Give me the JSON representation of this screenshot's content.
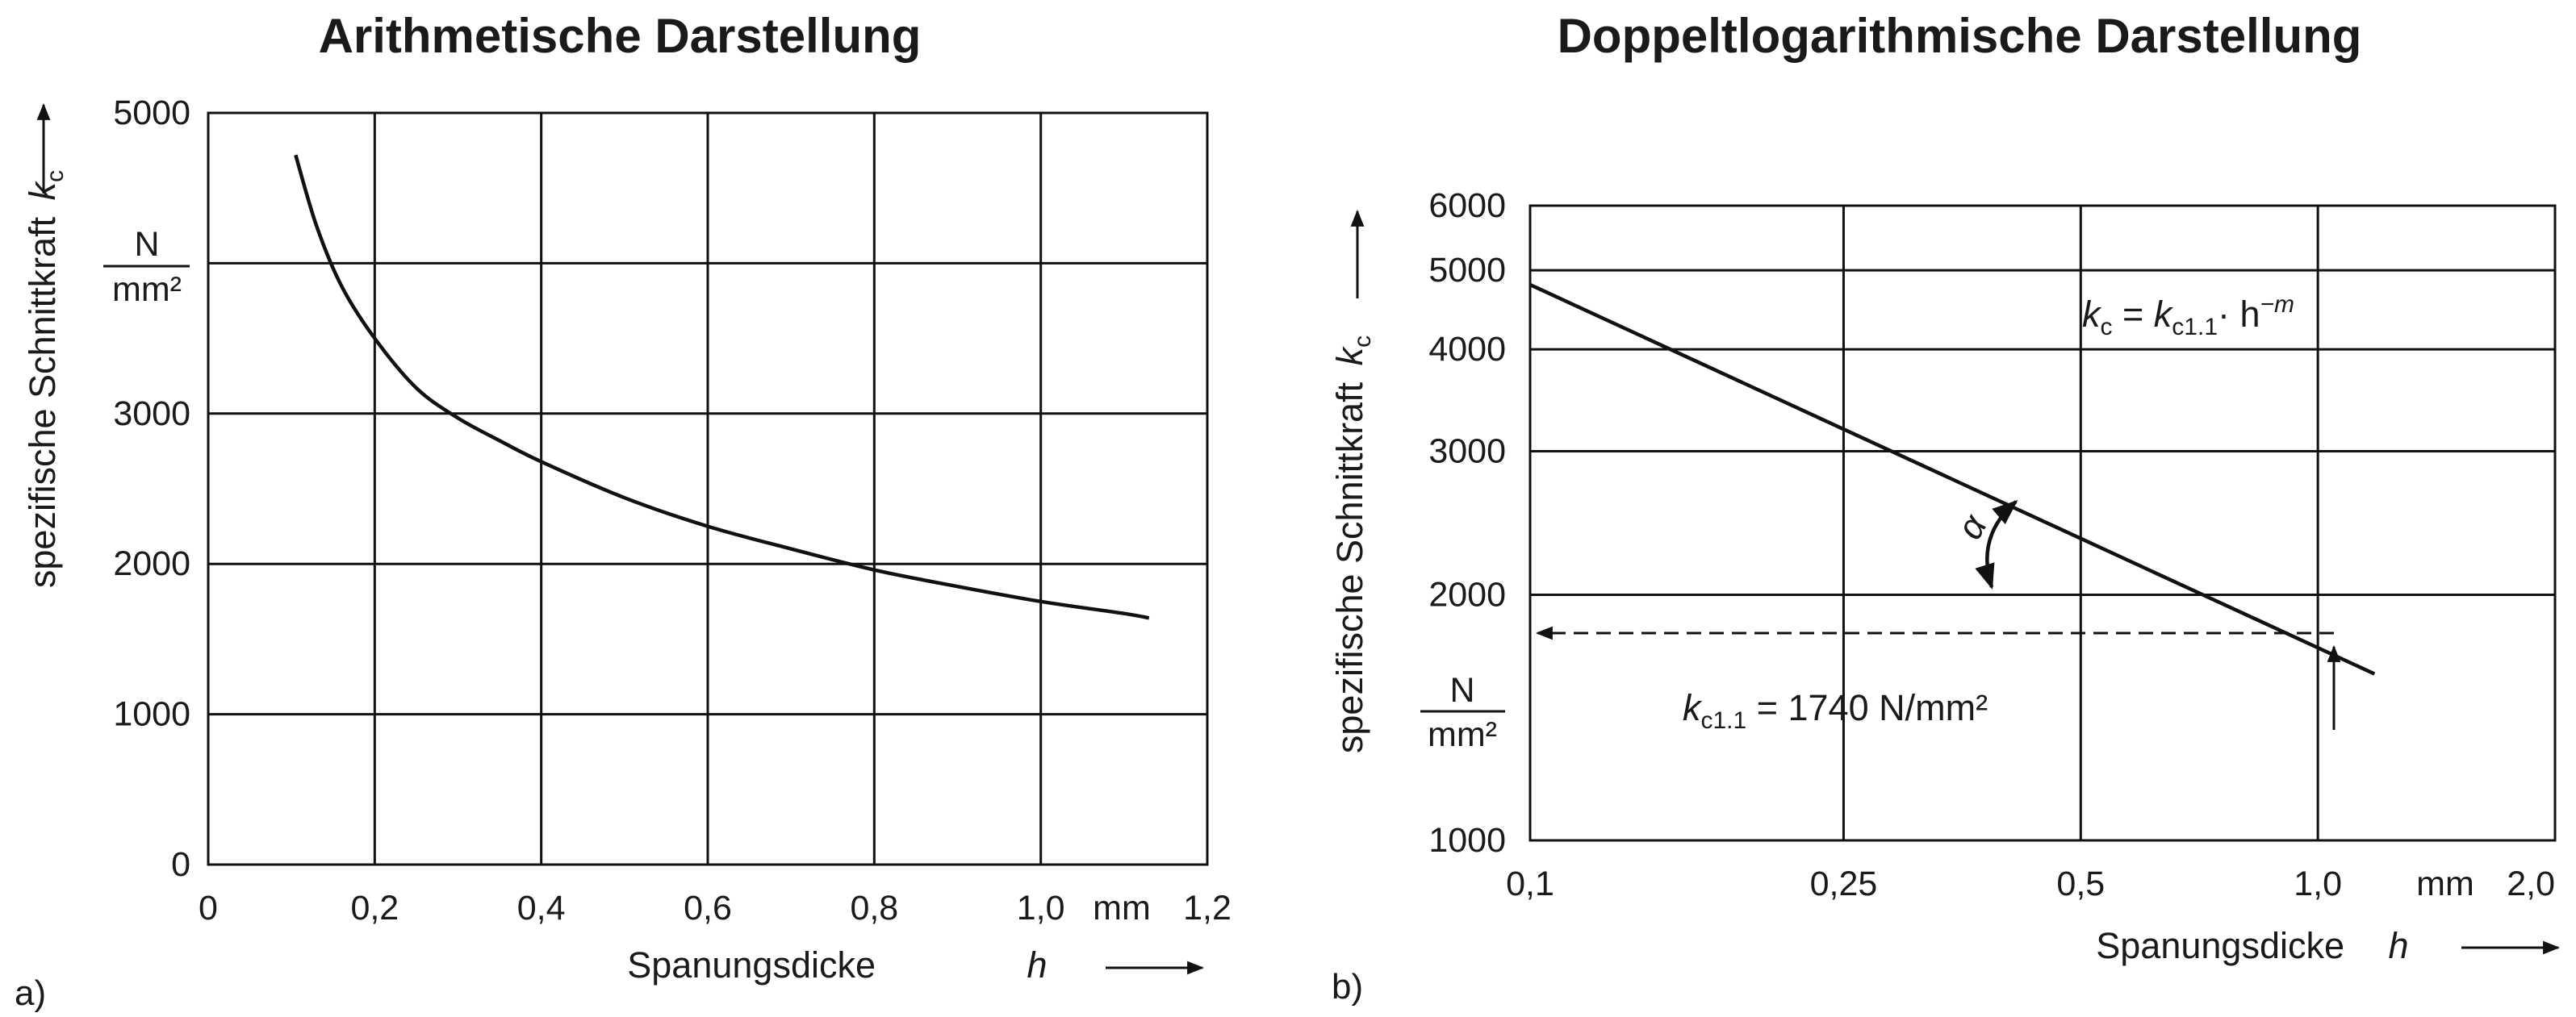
{
  "chart_data": [
    {
      "id": "a",
      "panel_label": "a)",
      "type": "line",
      "title": "Arithmetische Darstellung",
      "xlabel": "Spanungsdicke",
      "xlabel_var": "h",
      "x_unit": "mm",
      "ylabel": "spezifische Schnittkraft",
      "ylabel_var": "k",
      "ylabel_sub": "c",
      "y_unit_num": "N",
      "y_unit_den": "mm²",
      "xlim": [
        0,
        1.2
      ],
      "ylim": [
        0,
        5000
      ],
      "x_scale": "linear",
      "y_scale": "linear",
      "grid": true,
      "x_ticks": [
        {
          "value": 0,
          "label": "0"
        },
        {
          "value": 0.2,
          "label": "0,2"
        },
        {
          "value": 0.4,
          "label": "0,4"
        },
        {
          "value": 0.6,
          "label": "0,6"
        },
        {
          "value": 0.8,
          "label": "0,8"
        },
        {
          "value": 1.0,
          "label": "1,0"
        },
        {
          "value": 1.2,
          "label": "1,2"
        }
      ],
      "y_ticks": [
        {
          "value": 0,
          "label": "0"
        },
        {
          "value": 1000,
          "label": "1000"
        },
        {
          "value": 2000,
          "label": "2000"
        },
        {
          "value": 3000,
          "label": "3000"
        },
        {
          "value": 5000,
          "label": "5000"
        }
      ],
      "y_gridlines": [
        1000,
        2000,
        3000,
        4000
      ],
      "series": [
        {
          "x": [
            0.105,
            0.13,
            0.16,
            0.2,
            0.25,
            0.3,
            0.35,
            0.4,
            0.5,
            0.6,
            0.7,
            0.8,
            0.9,
            1.0,
            1.1,
            1.13
          ],
          "y": [
            4720,
            4250,
            3850,
            3500,
            3170,
            2970,
            2820,
            2680,
            2440,
            2250,
            2100,
            1960,
            1850,
            1750,
            1670,
            1640
          ]
        }
      ]
    },
    {
      "id": "b",
      "panel_label": "b)",
      "type": "line",
      "title": "Doppeltlogarithmische Darstellung",
      "xlabel": "Spanungsdicke",
      "xlabel_var": "h",
      "x_unit": "mm",
      "ylabel": "spezifische Schnittkraft",
      "ylabel_var": "k",
      "ylabel_sub": "c",
      "y_unit_num": "N",
      "y_unit_den": "mm²",
      "xlim": [
        0.1,
        2.0
      ],
      "ylim": [
        1000,
        6000
      ],
      "x_scale": "log",
      "y_scale": "log",
      "grid": true,
      "x_ticks": [
        {
          "value": 0.1,
          "label": "0,1"
        },
        {
          "value": 0.25,
          "label": "0,25"
        },
        {
          "value": 0.5,
          "label": "0,5"
        },
        {
          "value": 1.0,
          "label": "1,0"
        },
        {
          "value": 2.0,
          "label": "2,0"
        }
      ],
      "y_ticks": [
        {
          "value": 1000,
          "label": "1000"
        },
        {
          "value": 2000,
          "label": "2000"
        },
        {
          "value": 3000,
          "label": "3000"
        },
        {
          "value": 4000,
          "label": "4000"
        },
        {
          "value": 5000,
          "label": "5000"
        },
        {
          "value": 6000,
          "label": "6000"
        }
      ],
      "series": [
        {
          "x": [
            0.1,
            1.18
          ],
          "y": [
            4800,
            1600
          ]
        }
      ],
      "annotations": {
        "formula": {
          "k": "k",
          "k_sub": "c",
          "eq": " = ",
          "k2": "k",
          "k2_sub": "c1.1",
          "tail": "· h",
          "exp": "−m"
        },
        "kc11": {
          "k": "k",
          "sub": "c1.1",
          "text": " = 1740 N/mm²"
        },
        "kc11_value": 1740,
        "angle_symbol": "α"
      }
    }
  ]
}
